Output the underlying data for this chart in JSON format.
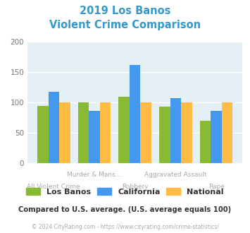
{
  "title_line1": "2019 Los Banos",
  "title_line2": "Violent Crime Comparison",
  "title_color": "#3399cc",
  "categories": [
    "All Violent Crime",
    "Murder & Mans...",
    "Robbery",
    "Aggravated Assault",
    "Rape"
  ],
  "los_banos": [
    94,
    100,
    110,
    93,
    70
  ],
  "california": [
    118,
    86,
    162,
    107,
    86
  ],
  "national": [
    100,
    100,
    100,
    100,
    100
  ],
  "colors": {
    "los_banos": "#88bb33",
    "california": "#4499ee",
    "national": "#ffbb44"
  },
  "ylim": [
    0,
    200
  ],
  "yticks": [
    0,
    50,
    100,
    150,
    200
  ],
  "bg_color": "#e5f0f5",
  "footer_text": "Compared to U.S. average. (U.S. average equals 100)",
  "footer_color": "#333333",
  "copyright_text": "© 2024 CityRating.com - https://www.cityrating.com/crime-statistics/",
  "copyright_color": "#aaaaaa",
  "legend_labels": [
    "Los Banos",
    "California",
    "National"
  ],
  "legend_text_color": "#333333",
  "xlabel_color": "#aaaaaa",
  "ytick_color": "#777777"
}
